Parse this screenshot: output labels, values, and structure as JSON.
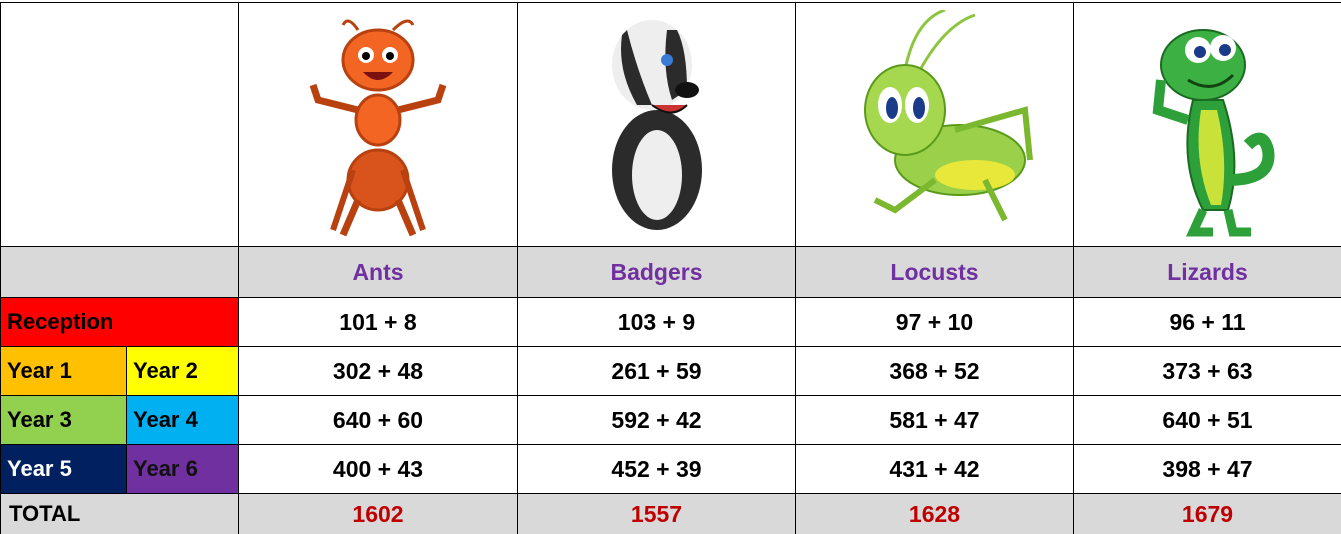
{
  "table": {
    "headers": [
      "Ants",
      "Badgers",
      "Locusts",
      "Lizards"
    ],
    "rows": [
      {
        "labels": [
          "Reception"
        ],
        "cells": [
          "101 + 8",
          "103 + 9",
          "97 + 10",
          "96 + 11"
        ]
      },
      {
        "labels": [
          "Year 1",
          "Year 2"
        ],
        "cells": [
          "302 + 48",
          "261 + 59",
          "368 + 52",
          "373 + 63"
        ]
      },
      {
        "labels": [
          "Year 3",
          "Year 4"
        ],
        "cells": [
          "640 + 60",
          "592 + 42",
          "581 + 47",
          "640 + 51"
        ]
      },
      {
        "labels": [
          "Year 5",
          "Year 6"
        ],
        "cells": [
          "400 + 43",
          "452 + 39",
          "431 + 42",
          "398 + 47"
        ]
      }
    ],
    "total": {
      "label": "TOTAL",
      "values": [
        1602,
        1557,
        1628,
        1679
      ]
    }
  }
}
